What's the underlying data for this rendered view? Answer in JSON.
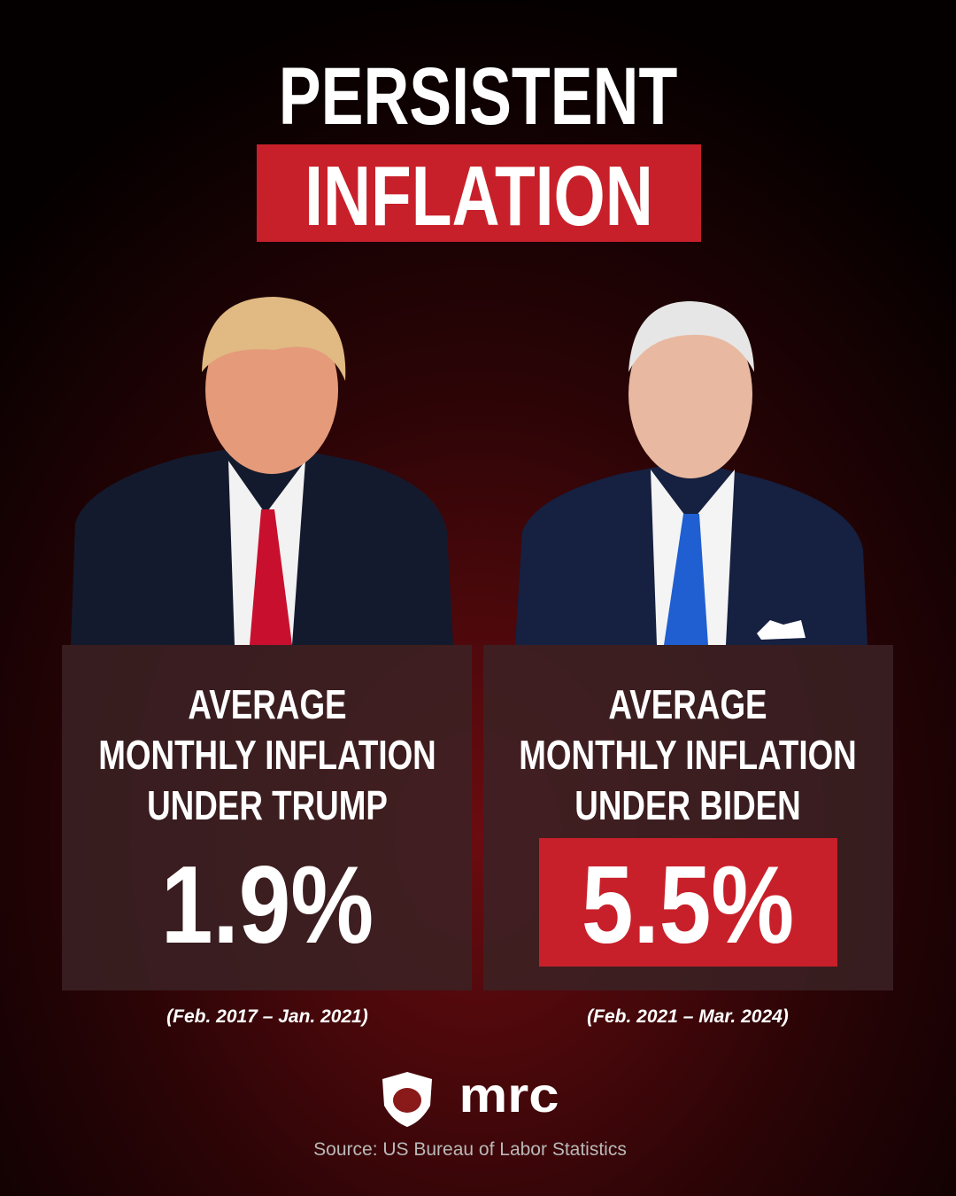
{
  "header": {
    "title_line1": "PERSISTENT",
    "title_line2": "INFLATION"
  },
  "panels": [
    {
      "label_lines": [
        "AVERAGE",
        "MONTHLY INFLATION",
        "UNDER TRUMP"
      ],
      "value": "1.9%",
      "period": "(Feb. 2017 – Jan. 2021)"
    },
    {
      "label_lines": [
        "AVERAGE",
        "MONTHLY INFLATION",
        "UNDER BIDEN"
      ],
      "value": "5.5%",
      "period": "(Feb. 2021 – Mar. 2024)"
    }
  ],
  "footer": {
    "logo": "mrc",
    "source": "Source: US Bureau of Labor Statistics"
  }
}
